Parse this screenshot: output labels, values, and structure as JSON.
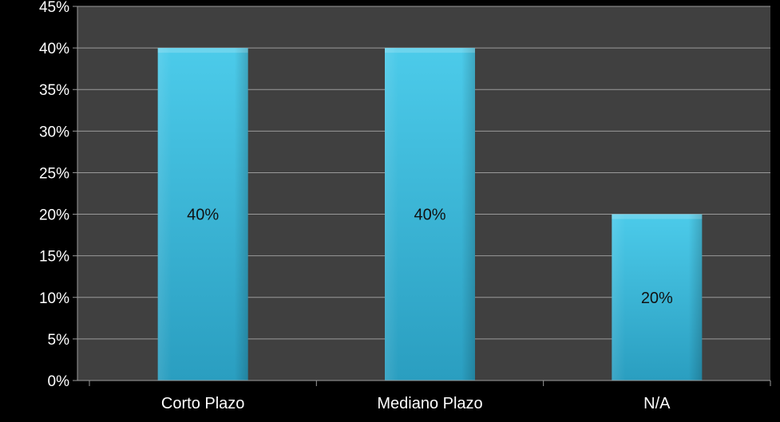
{
  "chart_data": {
    "type": "bar",
    "title": "",
    "xlabel": "",
    "ylabel": "",
    "categories": [
      "Corto Plazo",
      "Mediano Plazo",
      "N/A"
    ],
    "values": [
      40,
      40,
      20
    ],
    "value_labels": [
      "40%",
      "40%",
      "20%"
    ],
    "y_ticks": [
      "0%",
      "5%",
      "10%",
      "15%",
      "20%",
      "25%",
      "30%",
      "35%",
      "40%",
      "45%"
    ],
    "y_tick_values": [
      0,
      5,
      10,
      15,
      20,
      25,
      30,
      35,
      40,
      45
    ],
    "ylim": [
      0,
      45
    ],
    "grid": true,
    "legend": "none",
    "colors": {
      "page_background": "#000000",
      "plot_background": "#404040",
      "gridline": "#9a9a9a",
      "bar_top": "#4ccbea",
      "bar_bottom": "#2a9ec0",
      "axis_text": "#ffffff",
      "data_label_text": "#111111"
    }
  }
}
